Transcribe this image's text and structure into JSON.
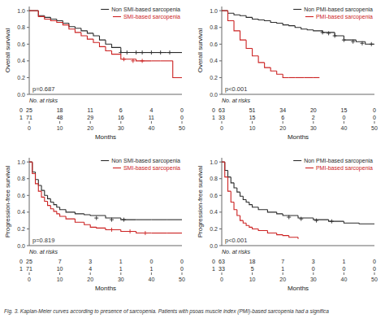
{
  "chart_data": [
    {
      "type": "step",
      "xlabel": "Months",
      "ylabel": "Overall survival",
      "annotations": [
        {
          "text": "p=0.687"
        }
      ],
      "xlim": [
        0,
        50
      ],
      "ylim": [
        0.0,
        1.05
      ],
      "xticks": [
        0,
        10,
        20,
        30,
        40,
        50
      ],
      "yticks": [
        {
          "value": 0.0,
          "label": "0.0"
        },
        0.2,
        0.4,
        0.6,
        0.8,
        {
          "value": 1.0,
          "label": "1.0"
        }
      ],
      "grid": false,
      "legend": "upper right",
      "series": [
        {
          "name": "Non SMI-based sarcopenia",
          "color": "#2b2b2b",
          "x": [
            0,
            3,
            5,
            7,
            9,
            11,
            13,
            15,
            17,
            19,
            21,
            23,
            25,
            27,
            30,
            35,
            40,
            45,
            50
          ],
          "values": [
            1.0,
            0.94,
            0.92,
            0.9,
            0.88,
            0.85,
            0.81,
            0.79,
            0.76,
            0.73,
            0.7,
            0.65,
            0.6,
            0.56,
            0.5,
            0.5,
            0.5,
            0.5,
            0.5
          ],
          "censors": {
            "marker": "+",
            "x": [
              30,
              32,
              35,
              37,
              40,
              43,
              46
            ],
            "values": [
              0.5,
              0.5,
              0.5,
              0.5,
              0.5,
              0.5,
              0.5
            ]
          }
        },
        {
          "name": "SMI-based sarcopenia",
          "color": "#cc2222",
          "x": [
            0,
            3,
            5,
            7,
            9,
            11,
            13,
            15,
            17,
            19,
            21,
            23,
            25,
            27,
            30,
            35,
            40,
            43,
            47,
            50
          ],
          "values": [
            1.0,
            0.93,
            0.9,
            0.88,
            0.86,
            0.83,
            0.78,
            0.74,
            0.7,
            0.66,
            0.62,
            0.57,
            0.52,
            0.48,
            0.42,
            0.4,
            0.4,
            0.4,
            0.2,
            0.2
          ],
          "censors": {
            "marker": "+",
            "x": [
              31,
              34,
              37
            ],
            "values": [
              0.42,
              0.4,
              0.4
            ]
          }
        }
      ],
      "at_risk": {
        "title": "No. at risks",
        "rows": [
          {
            "label": "0",
            "values": [
              25,
              18,
              11,
              6,
              4,
              0
            ]
          },
          {
            "label": "1",
            "values": [
              71,
              48,
              29,
              16,
              11,
              0
            ]
          }
        ]
      }
    },
    {
      "type": "step",
      "xlabel": "Months",
      "ylabel": "Overall survival",
      "annotations": [
        {
          "text": "p<0.001"
        }
      ],
      "xlim": [
        0,
        50
      ],
      "ylim": [
        0.0,
        1.05
      ],
      "xticks": [
        0,
        10,
        20,
        30,
        40,
        50
      ],
      "yticks": [
        {
          "value": 0.0,
          "label": "0.0"
        },
        0.2,
        0.4,
        0.6,
        0.8,
        {
          "value": 1.0,
          "label": "1.0"
        }
      ],
      "grid": false,
      "legend": "upper right",
      "series": [
        {
          "name": "Non PMI-based sarcopenia",
          "color": "#2b2b2b",
          "x": [
            0,
            2,
            4,
            6,
            8,
            10,
            12,
            14,
            16,
            18,
            20,
            22,
            24,
            26,
            28,
            30,
            33,
            37,
            40,
            44,
            47,
            50
          ],
          "values": [
            1.0,
            0.97,
            0.95,
            0.94,
            0.92,
            0.9,
            0.89,
            0.88,
            0.86,
            0.85,
            0.83,
            0.82,
            0.8,
            0.78,
            0.77,
            0.76,
            0.74,
            0.7,
            0.65,
            0.63,
            0.6,
            0.6
          ],
          "censors": {
            "marker": "+",
            "x": [
              33,
              35,
              37,
              40,
              43,
              46,
              49
            ],
            "values": [
              0.74,
              0.73,
              0.7,
              0.65,
              0.63,
              0.61,
              0.6
            ]
          }
        },
        {
          "name": "PMI-based sarcopenia",
          "color": "#cc2222",
          "x": [
            0,
            2,
            4,
            6,
            8,
            10,
            12,
            14,
            16,
            18,
            20,
            22,
            24,
            27,
            30,
            32
          ],
          "values": [
            1.0,
            0.88,
            0.76,
            0.65,
            0.55,
            0.46,
            0.38,
            0.32,
            0.28,
            0.24,
            0.2,
            0.2,
            0.2,
            0.2,
            0.2,
            0.2
          ],
          "censors": {
            "marker": "+",
            "x": [],
            "values": []
          }
        }
      ],
      "at_risk": {
        "title": "No. at risks",
        "rows": [
          {
            "label": "0",
            "values": [
              63,
              51,
              34,
              20,
              15,
              0
            ]
          },
          {
            "label": "1",
            "values": [
              33,
              15,
              6,
              2,
              0,
              0
            ]
          }
        ]
      }
    },
    {
      "type": "step",
      "xlabel": "Months",
      "ylabel": "Progression-free survival",
      "annotations": [
        {
          "text": "p=0.819"
        }
      ],
      "xlim": [
        0,
        50
      ],
      "ylim": [
        0.0,
        1.05
      ],
      "xticks": [
        0,
        10,
        20,
        30,
        40,
        50
      ],
      "yticks": [
        {
          "value": 0.0,
          "label": "0.0"
        },
        0.2,
        0.4,
        0.6,
        0.8,
        {
          "value": 1.0,
          "label": "1.0"
        }
      ],
      "grid": false,
      "legend": "upper right",
      "series": [
        {
          "name": "Non SMI-based sarcopenia",
          "color": "#2b2b2b",
          "x": [
            0,
            1,
            2,
            3,
            4,
            5,
            6,
            7,
            8,
            9,
            10,
            12,
            15,
            18,
            20,
            25,
            30,
            35,
            40,
            45,
            50
          ],
          "values": [
            1.0,
            0.88,
            0.79,
            0.72,
            0.66,
            0.6,
            0.56,
            0.52,
            0.49,
            0.46,
            0.43,
            0.4,
            0.38,
            0.37,
            0.36,
            0.33,
            0.31,
            0.31,
            0.31,
            0.31,
            0.31
          ],
          "censors": {
            "marker": "+",
            "x": [
              22,
              27,
              31
            ],
            "values": [
              0.33,
              0.31,
              0.31
            ]
          }
        },
        {
          "name": "SMI-based sarcopenia",
          "color": "#cc2222",
          "x": [
            0,
            1,
            2,
            3,
            4,
            5,
            6,
            7,
            8,
            9,
            10,
            12,
            15,
            18,
            20,
            22,
            25,
            30,
            35,
            40,
            45,
            50
          ],
          "values": [
            1.0,
            0.86,
            0.74,
            0.65,
            0.58,
            0.53,
            0.48,
            0.44,
            0.41,
            0.38,
            0.35,
            0.32,
            0.28,
            0.25,
            0.22,
            0.21,
            0.19,
            0.17,
            0.15,
            0.15,
            0.15,
            0.15
          ],
          "censors": {
            "marker": "+",
            "x": [
              27,
              33,
              38
            ],
            "values": [
              0.19,
              0.17,
              0.15
            ]
          }
        }
      ],
      "at_risk": {
        "title": "No. at risks",
        "rows": [
          {
            "label": "0",
            "values": [
              25,
              7,
              3,
              1,
              0,
              0
            ]
          },
          {
            "label": "1",
            "values": [
              71,
              10,
              4,
              1,
              1,
              0
            ]
          }
        ]
      }
    },
    {
      "type": "step",
      "xlabel": "Months",
      "ylabel": "Progression-free survival",
      "annotations": [
        {
          "text": "p<0.001"
        }
      ],
      "xlim": [
        0,
        50
      ],
      "ylim": [
        0.0,
        1.05
      ],
      "xticks": [
        0,
        10,
        20,
        30,
        40,
        50
      ],
      "yticks": [
        {
          "value": 0.0,
          "label": "0.0"
        },
        0.2,
        0.4,
        0.6,
        0.8,
        {
          "value": 1.0,
          "label": "1.0"
        }
      ],
      "grid": false,
      "legend": "upper right",
      "series": [
        {
          "name": "Non PMI-based sarcopenia",
          "color": "#2b2b2b",
          "x": [
            0,
            1,
            2,
            3,
            4,
            5,
            6,
            7,
            8,
            9,
            10,
            12,
            15,
            18,
            20,
            25,
            30,
            35,
            40,
            45,
            50
          ],
          "values": [
            1.0,
            0.9,
            0.82,
            0.75,
            0.69,
            0.64,
            0.59,
            0.55,
            0.52,
            0.49,
            0.46,
            0.43,
            0.4,
            0.38,
            0.36,
            0.33,
            0.31,
            0.29,
            0.27,
            0.26,
            0.26
          ],
          "censors": {
            "marker": "+",
            "x": [
              22,
              26,
              31,
              36
            ],
            "values": [
              0.34,
              0.32,
              0.3,
              0.29
            ]
          }
        },
        {
          "name": "PMI-based sarcopenia",
          "color": "#cc2222",
          "x": [
            0,
            1,
            2,
            3,
            4,
            5,
            6,
            7,
            8,
            9,
            10,
            12,
            15,
            18,
            20,
            22,
            25
          ],
          "values": [
            1.0,
            0.82,
            0.65,
            0.52,
            0.43,
            0.36,
            0.3,
            0.27,
            0.24,
            0.22,
            0.2,
            0.18,
            0.15,
            0.13,
            0.12,
            0.1,
            0.08
          ],
          "censors": {
            "marker": "+",
            "x": [],
            "values": []
          }
        }
      ],
      "at_risk": {
        "title": "No. at risks",
        "rows": [
          {
            "label": "0",
            "values": [
              63,
              18,
              7,
              3,
              1,
              0
            ]
          },
          {
            "label": "1",
            "values": [
              33,
              5,
              1,
              0,
              0,
              0
            ]
          }
        ]
      }
    }
  ],
  "caption": "Fig. 3. Kaplan-Meier curves according to presence of sarcopenia. Patients with psoas muscle index (PMI)-based sarcopenia had a significa"
}
